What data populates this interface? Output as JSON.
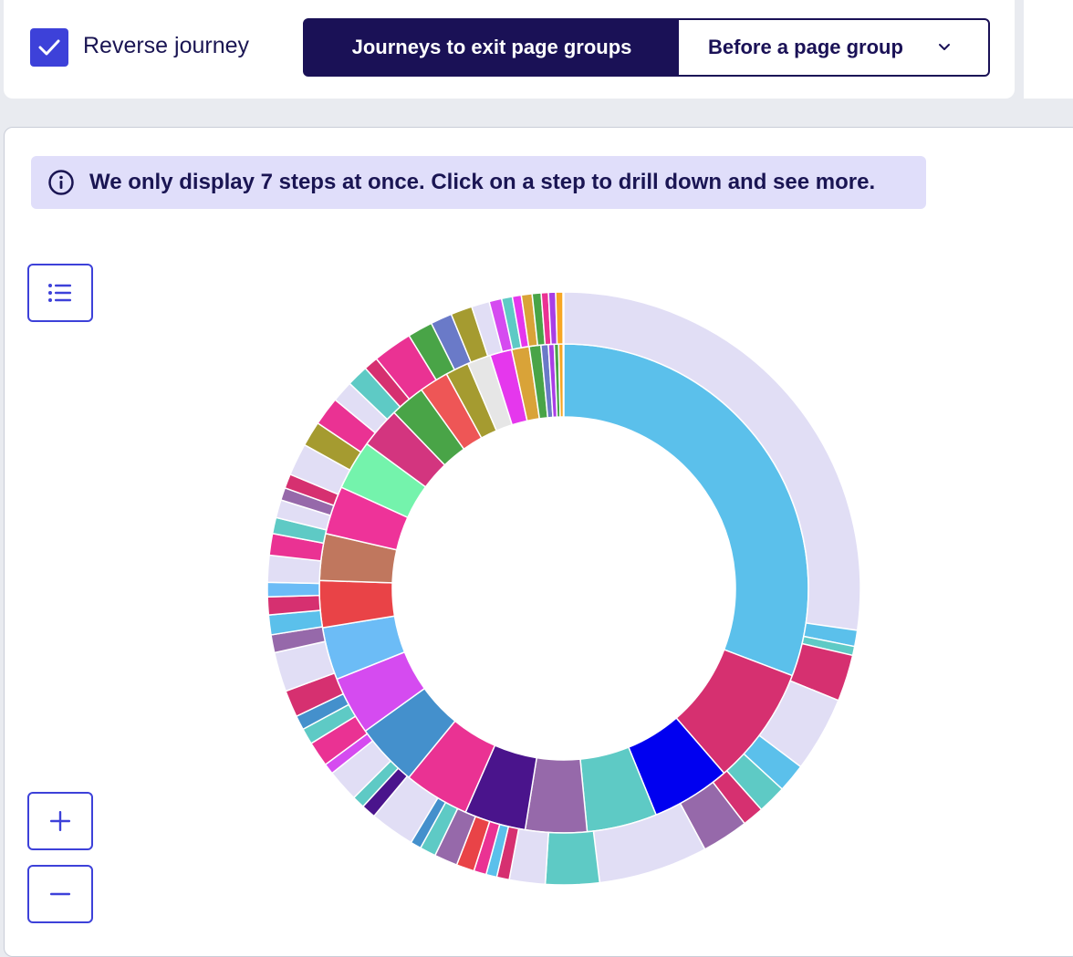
{
  "header": {
    "reverse_journey": {
      "label": "Reverse journey",
      "checked": true
    },
    "mode_tabs": {
      "active_label": "Journeys to exit page groups"
    },
    "dropdown": {
      "label": "Before a page group",
      "icon": "chevron-down-icon"
    }
  },
  "notice": {
    "icon": "info-icon",
    "text": "We only display 7 steps at once. Click on a step to drill down and see more."
  },
  "tools": {
    "legend_icon": "list-icon",
    "zoom_in_icon": "plus-icon",
    "zoom_out_icon": "minus-icon"
  },
  "colors": {
    "accent": "#3d41d9",
    "navy": "#1a1156",
    "notice_bg": "#e0defa",
    "exit_ring": "#e1def5"
  },
  "chart_data": {
    "type": "sunburst",
    "title": "",
    "steps_displayed": 7,
    "inner_ring": [
      {
        "share": 31.9,
        "color": "#5bc0eb"
      },
      {
        "share": 8.1,
        "color": "#d63070"
      },
      {
        "share": 5.4,
        "color": "#0000f0"
      },
      {
        "share": 4.8,
        "color": "#5ecac5"
      },
      {
        "share": 4.2,
        "color": "#9669aa"
      },
      {
        "share": 4.2,
        "color": "#4a148c"
      },
      {
        "share": 4.5,
        "color": "#ea3293"
      },
      {
        "share": 4.3,
        "color": "#4490cc"
      },
      {
        "share": 4.0,
        "color": "#d54bf0"
      },
      {
        "share": 3.6,
        "color": "#6cbcf6"
      },
      {
        "share": 3.2,
        "color": "#e94347"
      },
      {
        "share": 3.2,
        "color": "#c0775e"
      },
      {
        "share": 3.3,
        "color": "#ee3399"
      },
      {
        "share": 3.4,
        "color": "#74f3ac"
      },
      {
        "share": 2.8,
        "color": "#d3357f"
      },
      {
        "share": 2.4,
        "color": "#49a447"
      },
      {
        "share": 2.0,
        "color": "#ee5656"
      },
      {
        "share": 1.6,
        "color": "#a59b30"
      },
      {
        "share": 1.6,
        "color": "#e6e6e6"
      },
      {
        "share": 1.5,
        "color": "#e537ed"
      },
      {
        "share": 1.2,
        "color": "#d9a338"
      },
      {
        "share": 0.8,
        "color": "#49a447"
      },
      {
        "share": 0.5,
        "color": "#6a7ac8"
      },
      {
        "share": 0.4,
        "color": "#a93ee5"
      },
      {
        "share": 0.3,
        "color": "#49a447"
      },
      {
        "share": 0.3,
        "color": "#f7a623"
      }
    ],
    "outer_ring": [
      {
        "share": 27.9,
        "color": "#e1def5"
      },
      {
        "share": 0.9,
        "color": "#5bc0eb"
      },
      {
        "share": 0.5,
        "color": "#5ecac5"
      },
      {
        "share": 2.6,
        "color": "#d63070"
      },
      {
        "share": 4.2,
        "color": "#e1def5"
      },
      {
        "share": 1.6,
        "color": "#5bc0eb"
      },
      {
        "share": 1.6,
        "color": "#5ecac5"
      },
      {
        "share": 1.2,
        "color": "#d63070"
      },
      {
        "share": 2.6,
        "color": "#9669aa"
      },
      {
        "share": 6.1,
        "color": "#e1def5"
      },
      {
        "share": 3.0,
        "color": "#5ecac5"
      },
      {
        "share": 2.0,
        "color": "#e1def5"
      },
      {
        "share": 0.7,
        "color": "#d63070"
      },
      {
        "share": 0.6,
        "color": "#5bc0eb"
      },
      {
        "share": 0.7,
        "color": "#ea3293"
      },
      {
        "share": 1.0,
        "color": "#e94347"
      },
      {
        "share": 1.3,
        "color": "#9669aa"
      },
      {
        "share": 0.9,
        "color": "#5ecac5"
      },
      {
        "share": 0.6,
        "color": "#4490cc"
      },
      {
        "share": 2.5,
        "color": "#e1def5"
      },
      {
        "share": 0.8,
        "color": "#4a148c"
      },
      {
        "share": 0.7,
        "color": "#5ecac5"
      },
      {
        "share": 1.8,
        "color": "#e1def5"
      },
      {
        "share": 0.6,
        "color": "#d54bf0"
      },
      {
        "share": 1.4,
        "color": "#ea3293"
      },
      {
        "share": 0.9,
        "color": "#5ecac5"
      },
      {
        "share": 0.8,
        "color": "#4490cc"
      },
      {
        "share": 1.5,
        "color": "#d63070"
      },
      {
        "share": 2.2,
        "color": "#e1def5"
      },
      {
        "share": 1.0,
        "color": "#9669aa"
      },
      {
        "share": 1.1,
        "color": "#5bc0eb"
      },
      {
        "share": 1.0,
        "color": "#d63070"
      },
      {
        "share": 0.8,
        "color": "#6cbcf6"
      },
      {
        "share": 1.5,
        "color": "#e1def5"
      },
      {
        "share": 1.2,
        "color": "#ea3293"
      },
      {
        "share": 0.9,
        "color": "#5ecac5"
      },
      {
        "share": 1.0,
        "color": "#e1def5"
      },
      {
        "share": 0.7,
        "color": "#9669aa"
      },
      {
        "share": 0.8,
        "color": "#d63070"
      },
      {
        "share": 1.8,
        "color": "#e1def5"
      },
      {
        "share": 1.4,
        "color": "#a59b30"
      },
      {
        "share": 1.6,
        "color": "#ea3293"
      },
      {
        "share": 1.2,
        "color": "#e1def5"
      },
      {
        "share": 1.2,
        "color": "#5ecac5"
      },
      {
        "share": 0.8,
        "color": "#d63070"
      },
      {
        "share": 2.2,
        "color": "#ea3293"
      },
      {
        "share": 1.4,
        "color": "#49a447"
      },
      {
        "share": 1.2,
        "color": "#6a7ac8"
      },
      {
        "share": 1.2,
        "color": "#a59b30"
      },
      {
        "share": 1.0,
        "color": "#e1def5"
      },
      {
        "share": 0.7,
        "color": "#d54bf0"
      },
      {
        "share": 0.6,
        "color": "#5ecac5"
      },
      {
        "share": 0.5,
        "color": "#e537ed"
      },
      {
        "share": 0.6,
        "color": "#d9a338"
      },
      {
        "share": 0.5,
        "color": "#49a447"
      },
      {
        "share": 0.4,
        "color": "#ea3293"
      },
      {
        "share": 0.4,
        "color": "#a93ee5"
      },
      {
        "share": 0.4,
        "color": "#f7a623"
      }
    ]
  }
}
